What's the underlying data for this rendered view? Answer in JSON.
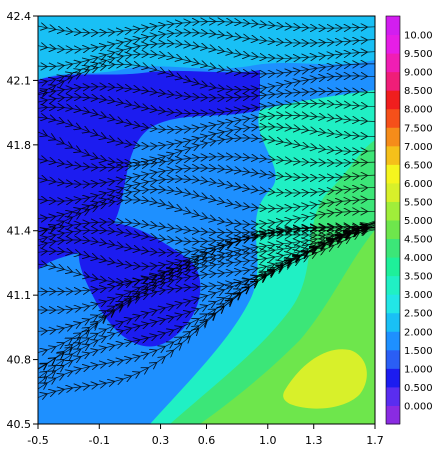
{
  "chart_data": {
    "type": "heatmap",
    "subtype": "filled-contour-with-streamlines",
    "title": "",
    "xlabel": "",
    "ylabel": "",
    "xlim": [
      -0.5,
      1.7
    ],
    "ylim": [
      40.5,
      42.4
    ],
    "x_ticks": [
      "-0.5",
      "-0.1",
      "0.3",
      "0.6",
      "1.0",
      "1.3",
      "1.7"
    ],
    "x_tick_values": [
      -0.5,
      -0.1,
      0.3,
      0.6,
      1.0,
      1.3,
      1.7
    ],
    "y_ticks": [
      "40.5",
      "40.8",
      "41.1",
      "41.4",
      "41.8",
      "42.1",
      "42.4"
    ],
    "y_tick_values": [
      40.5,
      40.8,
      41.1,
      41.4,
      41.8,
      42.1,
      42.4
    ],
    "grid": false,
    "legend": "colorbar-right",
    "colorbar": {
      "levels": [
        "0.000",
        "0.500",
        "1.000",
        "1.500",
        "2.000",
        "2.500",
        "3.000",
        "3.500",
        "4.000",
        "4.500",
        "5.000",
        "5.500",
        "6.000",
        "6.500",
        "7.000",
        "7.500",
        "8.000",
        "8.500",
        "9.000",
        "9.500",
        "10.00"
      ],
      "colors": [
        "#8a2be2",
        "#5a2df0",
        "#1c1cf0",
        "#2a5ef5",
        "#1e90ff",
        "#19c0f5",
        "#22e6e6",
        "#20f0c4",
        "#1ef09a",
        "#3ce678",
        "#6ee64c",
        "#a0ee3a",
        "#d8f02a",
        "#f5f51e",
        "#f5c01a",
        "#f58c1a",
        "#f5501a",
        "#f01e1e",
        "#f01e78",
        "#f01eb4",
        "#e61ee6",
        "#d21ef0"
      ]
    },
    "field_regions": [
      {
        "name": "background",
        "level_index": 4
      },
      {
        "name": "north-west-low",
        "level_index": 2
      },
      {
        "name": "north-band",
        "level_index": 5
      },
      {
        "name": "east-plateau",
        "level_index": 7
      },
      {
        "name": "east-high",
        "level_index": 9
      },
      {
        "name": "south-east-high",
        "level_index": 10
      },
      {
        "name": "south-east-peak",
        "level_index": 12
      },
      {
        "name": "south-low",
        "level_index": 2
      }
    ]
  }
}
